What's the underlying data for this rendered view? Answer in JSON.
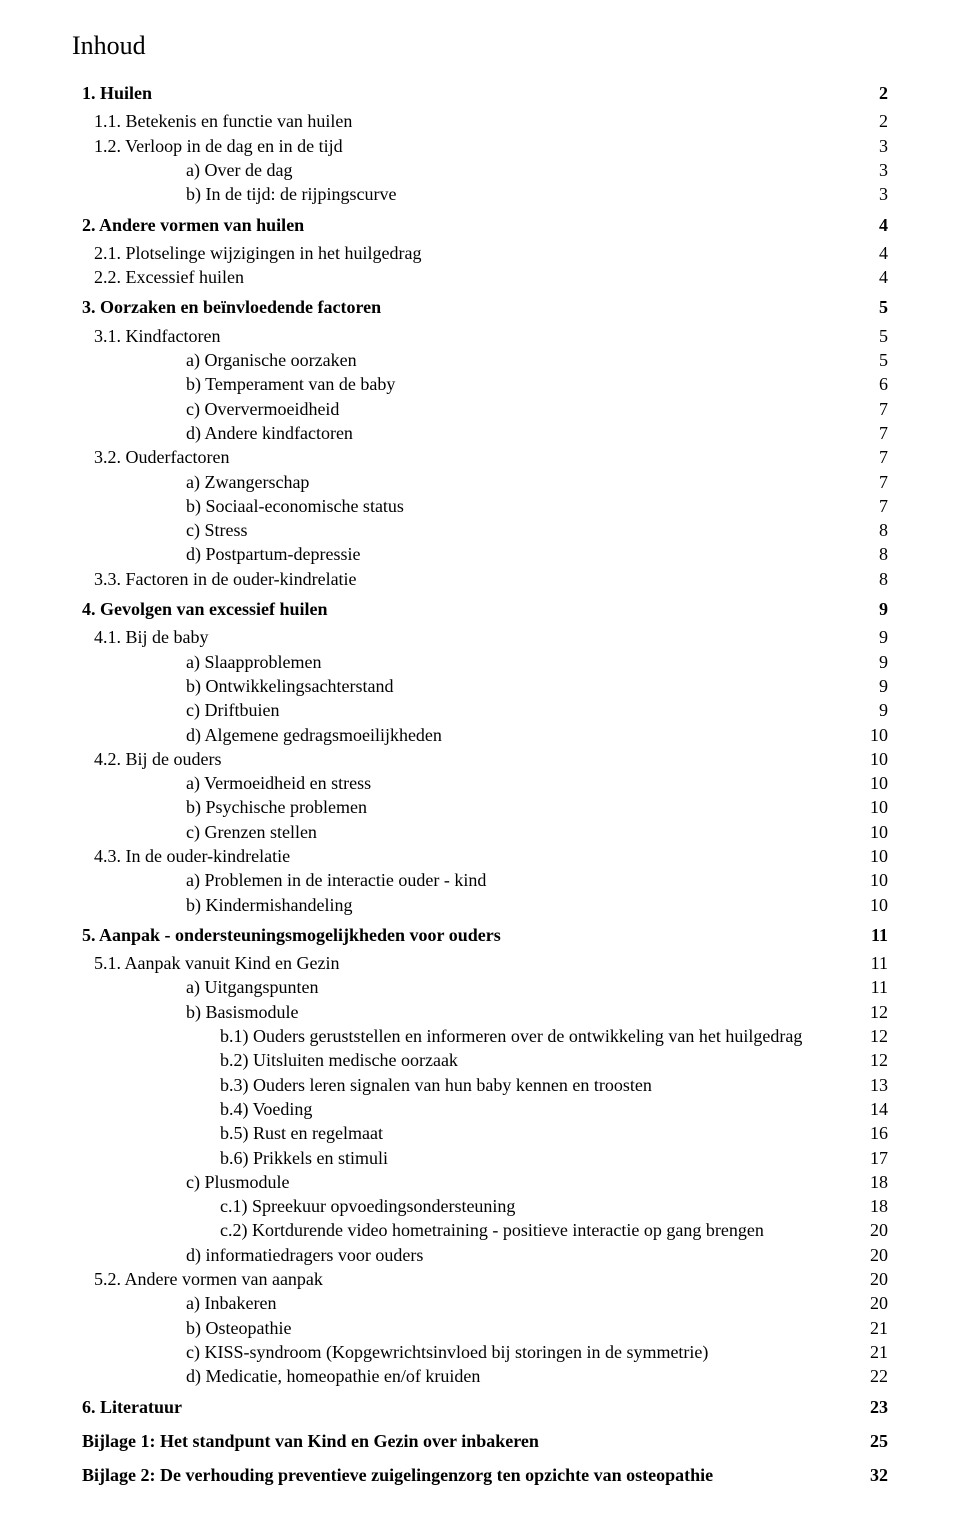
{
  "title": "Inhoud",
  "entries": [
    {
      "level": 0,
      "label": "1.   Huilen",
      "page": "2",
      "bold": true
    },
    {
      "level": 1,
      "label": "1.1.   Betekenis en functie van huilen",
      "page": "2"
    },
    {
      "level": 1,
      "label": "1.2.   Verloop in de dag en in de tijd",
      "page": "3"
    },
    {
      "level": 3,
      "label": "a)   Over de dag",
      "page": "3"
    },
    {
      "level": 3,
      "label": "b)   In de tijd: de rijpingscurve",
      "page": "3"
    },
    {
      "level": 0,
      "label": "2.   Andere vormen van huilen",
      "page": "4",
      "bold": true
    },
    {
      "level": 1,
      "label": "2.1.   Plotselinge wijzigingen in het huilgedrag",
      "page": "4"
    },
    {
      "level": 1,
      "label": "2.2.   Excessief huilen",
      "page": "4"
    },
    {
      "level": 0,
      "label": "3.   Oorzaken en beïnvloedende factoren",
      "page": "5",
      "bold": true
    },
    {
      "level": 1,
      "label": "3.1.   Kindfactoren",
      "page": "5"
    },
    {
      "level": 3,
      "label": "a)   Organische oorzaken",
      "page": "5"
    },
    {
      "level": 3,
      "label": "b)   Temperament van de baby",
      "page": "6"
    },
    {
      "level": 3,
      "label": "c)   Oververmoeidheid",
      "page": "7"
    },
    {
      "level": 3,
      "label": "d)   Andere kindfactoren",
      "page": "7"
    },
    {
      "level": 1,
      "label": "3.2.   Ouderfactoren",
      "page": "7"
    },
    {
      "level": 3,
      "label": "a)   Zwangerschap",
      "page": "7"
    },
    {
      "level": 3,
      "label": "b)   Sociaal-economische status",
      "page": "7"
    },
    {
      "level": 3,
      "label": "c)   Stress",
      "page": "8"
    },
    {
      "level": 3,
      "label": "d)   Postpartum-depressie",
      "page": "8"
    },
    {
      "level": 1,
      "label": "3.3.   Factoren in de ouder-kindrelatie",
      "page": "8"
    },
    {
      "level": 0,
      "label": "4.   Gevolgen van excessief huilen",
      "page": "9",
      "bold": true
    },
    {
      "level": 1,
      "label": "4.1.   Bij de baby",
      "page": "9"
    },
    {
      "level": 3,
      "label": "a)   Slaapproblemen",
      "page": "9"
    },
    {
      "level": 3,
      "label": "b)   Ontwikkelingsachterstand",
      "page": "9"
    },
    {
      "level": 3,
      "label": "c)   Driftbuien",
      "page": "9"
    },
    {
      "level": 3,
      "label": "d)   Algemene gedragsmoeilijkheden",
      "page": "10"
    },
    {
      "level": 1,
      "label": "4.2.   Bij de ouders",
      "page": "10"
    },
    {
      "level": 3,
      "label": "a)   Vermoeidheid en stress",
      "page": "10"
    },
    {
      "level": 3,
      "label": "b)   Psychische problemen",
      "page": "10"
    },
    {
      "level": 3,
      "label": "c)   Grenzen stellen",
      "page": "10"
    },
    {
      "level": 1,
      "label": "4.3.   In de ouder-kindrelatie",
      "page": "10"
    },
    {
      "level": 3,
      "label": "a)   Problemen in de interactie ouder - kind",
      "page": "10"
    },
    {
      "level": 3,
      "label": "b)   Kindermishandeling",
      "page": "10"
    },
    {
      "level": 0,
      "label": "5.   Aanpak - ondersteuningsmogelijkheden voor ouders",
      "page": "11",
      "bold": true
    },
    {
      "level": 1,
      "label": "5.1.   Aanpak vanuit Kind en Gezin",
      "page": "11"
    },
    {
      "level": 3,
      "label": "a)   Uitgangspunten",
      "page": "11"
    },
    {
      "level": 3,
      "label": "b)   Basismodule",
      "page": "12"
    },
    {
      "level": 4,
      "label": "b.1) Ouders geruststellen en informeren over de ontwikkeling van het huilgedrag",
      "page": "12"
    },
    {
      "level": 4,
      "label": "b.2) Uitsluiten medische oorzaak",
      "page": "12"
    },
    {
      "level": 4,
      "label": "b.3) Ouders leren signalen van hun baby kennen en troosten",
      "page": "13"
    },
    {
      "level": 4,
      "label": "b.4) Voeding",
      "page": "14"
    },
    {
      "level": 4,
      "label": "b.5) Rust en regelmaat",
      "page": "16"
    },
    {
      "level": 4,
      "label": "b.6) Prikkels en stimuli",
      "page": "17"
    },
    {
      "level": 3,
      "label": "c)   Plusmodule",
      "page": "18"
    },
    {
      "level": 4,
      "label": "c.1) Spreekuur opvoedingsondersteuning",
      "page": "18"
    },
    {
      "level": 4,
      "label": "c.2) Kortdurende video hometraining - positieve interactie op gang brengen",
      "page": "20"
    },
    {
      "level": 3,
      "label": "d)   informatiedragers voor ouders",
      "page": "20"
    },
    {
      "level": 1,
      "label": "5.2.   Andere vormen van aanpak",
      "page": "20"
    },
    {
      "level": 3,
      "label": "a)   Inbakeren",
      "page": "20"
    },
    {
      "level": 3,
      "label": "b)   Osteopathie",
      "page": "21"
    },
    {
      "level": 3,
      "label": "c)   KISS-syndroom (Kopgewrichtsinvloed bij storingen in de symmetrie)",
      "page": "21"
    },
    {
      "level": 3,
      "label": "d)   Medicatie, homeopathie en/of kruiden",
      "page": "22"
    },
    {
      "level": 0,
      "label": "6.   Literatuur",
      "page": "23",
      "bold": true
    },
    {
      "level": 0,
      "label": "Bijlage 1: Het standpunt van Kind en Gezin over inbakeren",
      "page": "25",
      "bold": true,
      "appendix": true
    },
    {
      "level": 0,
      "label": "Bijlage 2: De verhouding preventieve zuigelingenzorg ten opzichte van osteopathie",
      "page": "32",
      "bold": true,
      "appendix": true
    }
  ]
}
